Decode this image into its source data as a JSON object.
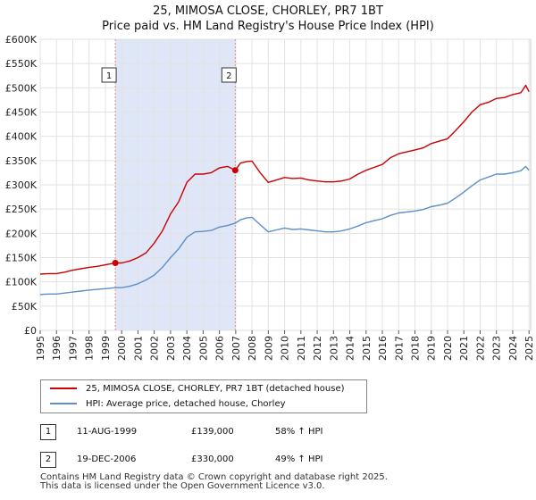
{
  "chart_data": {
    "type": "line",
    "title": "25, MIMOSA CLOSE, CHORLEY, PR7 1BT",
    "subtitle": "Price paid vs. HM Land Registry's House Price Index (HPI)",
    "xlim": [
      1995,
      2025.1
    ],
    "ylim": [
      0,
      600000
    ],
    "x_ticks": [
      1995,
      1996,
      1997,
      1998,
      1999,
      2000,
      2001,
      2002,
      2003,
      2004,
      2005,
      2006,
      2007,
      2008,
      2009,
      2010,
      2011,
      2012,
      2013,
      2014,
      2015,
      2016,
      2017,
      2018,
      2019,
      2020,
      2021,
      2022,
      2023,
      2024,
      2025
    ],
    "y_ticks": [
      {
        "value": 0,
        "label": "£0"
      },
      {
        "value": 50000,
        "label": "£50K"
      },
      {
        "value": 100000,
        "label": "£100K"
      },
      {
        "value": 150000,
        "label": "£150K"
      },
      {
        "value": 200000,
        "label": "£200K"
      },
      {
        "value": 250000,
        "label": "£250K"
      },
      {
        "value": 300000,
        "label": "£300K"
      },
      {
        "value": 350000,
        "label": "£350K"
      },
      {
        "value": 400000,
        "label": "£400K"
      },
      {
        "value": 450000,
        "label": "£450K"
      },
      {
        "value": 500000,
        "label": "£500K"
      },
      {
        "value": 550000,
        "label": "£550K"
      },
      {
        "value": 600000,
        "label": "£600K"
      }
    ],
    "grid": true,
    "shaded_period": [
      1999.61,
      2006.97
    ],
    "series": [
      {
        "name": "25, MIMOSA CLOSE, CHORLEY, PR7 1BT (detached house)",
        "color": "#cc0000",
        "x": [
          1995.0,
          1995.5,
          1996.0,
          1996.5,
          1997.0,
          1997.5,
          1998.0,
          1998.5,
          1999.0,
          1999.61,
          2000.0,
          2000.5,
          2001.0,
          2001.5,
          2002.0,
          2002.5,
          2003.0,
          2003.5,
          2004.0,
          2004.5,
          2005.0,
          2005.5,
          2006.0,
          2006.5,
          2006.97,
          2007.3,
          2007.7,
          2008.0,
          2008.5,
          2009.0,
          2009.5,
          2010.0,
          2010.5,
          2011.0,
          2011.5,
          2012.0,
          2012.5,
          2013.0,
          2013.5,
          2014.0,
          2014.5,
          2015.0,
          2015.5,
          2016.0,
          2016.5,
          2017.0,
          2017.5,
          2018.0,
          2018.5,
          2019.0,
          2019.5,
          2020.0,
          2020.5,
          2021.0,
          2021.5,
          2022.0,
          2022.5,
          2023.0,
          2023.5,
          2024.0,
          2024.5,
          2024.8,
          2025.0
        ],
        "values": [
          116000,
          117000,
          117000,
          120000,
          124000,
          127000,
          130000,
          132000,
          135000,
          139000,
          139000,
          143000,
          150000,
          160000,
          180000,
          205000,
          240000,
          265000,
          305000,
          322000,
          322000,
          325000,
          335000,
          338000,
          330000,
          345000,
          348000,
          349000,
          325000,
          305000,
          310000,
          315000,
          313000,
          314000,
          310000,
          308000,
          306000,
          306000,
          308000,
          312000,
          322000,
          330000,
          336000,
          342000,
          356000,
          364000,
          368000,
          372000,
          376000,
          385000,
          390000,
          395000,
          412000,
          430000,
          450000,
          465000,
          470000,
          478000,
          480000,
          486000,
          490000,
          505000,
          492000
        ]
      },
      {
        "name": "HPI: Average price, detached house, Chorley",
        "color": "#5b8fc9",
        "x": [
          1995.0,
          1995.5,
          1996.0,
          1996.5,
          1997.0,
          1997.5,
          1998.0,
          1998.5,
          1999.0,
          1999.61,
          2000.0,
          2000.5,
          2001.0,
          2001.5,
          2002.0,
          2002.5,
          2003.0,
          2003.5,
          2004.0,
          2004.5,
          2005.0,
          2005.5,
          2006.0,
          2006.5,
          2006.97,
          2007.3,
          2007.7,
          2008.0,
          2008.5,
          2009.0,
          2009.5,
          2010.0,
          2010.5,
          2011.0,
          2011.5,
          2012.0,
          2012.5,
          2013.0,
          2013.5,
          2014.0,
          2014.5,
          2015.0,
          2015.5,
          2016.0,
          2016.5,
          2017.0,
          2017.5,
          2018.0,
          2018.5,
          2019.0,
          2019.5,
          2020.0,
          2020.5,
          2021.0,
          2021.5,
          2022.0,
          2022.5,
          2023.0,
          2023.5,
          2024.0,
          2024.5,
          2024.8,
          2025.0
        ],
        "values": [
          74000,
          75000,
          75000,
          77000,
          79000,
          81000,
          83000,
          84500,
          86000,
          88000,
          88000,
          91000,
          96000,
          104000,
          114000,
          130000,
          150000,
          168000,
          192000,
          203000,
          204000,
          206000,
          213000,
          216000,
          221000,
          228000,
          232000,
          233000,
          218000,
          203000,
          207000,
          211000,
          208000,
          209000,
          207000,
          205000,
          203000,
          203000,
          205000,
          209000,
          215000,
          222000,
          226000,
          230000,
          237000,
          242000,
          244000,
          246000,
          249000,
          255000,
          258000,
          262000,
          273000,
          285000,
          298000,
          310000,
          316000,
          322000,
          322000,
          325000,
          329000,
          338000,
          330000
        ]
      }
    ],
    "sales": [
      {
        "label": "1",
        "date": "11-AUG-1999",
        "x": 1999.61,
        "price": "£139,000",
        "value": 139000,
        "hpi": "58% ↑ HPI"
      },
      {
        "label": "2",
        "date": "19-DEC-2006",
        "x": 2006.97,
        "price": "£330,000",
        "value": 330000,
        "hpi": "49% ↑ HPI"
      }
    ]
  },
  "legend": {
    "property": "25, MIMOSA CLOSE, CHORLEY, PR7 1BT (detached house)",
    "hpi": "HPI: Average price, detached house, Chorley"
  },
  "footer": {
    "line1": "Contains HM Land Registry data © Crown copyright and database right 2025.",
    "line2": "This data is licensed under the Open Government Licence v3.0."
  }
}
